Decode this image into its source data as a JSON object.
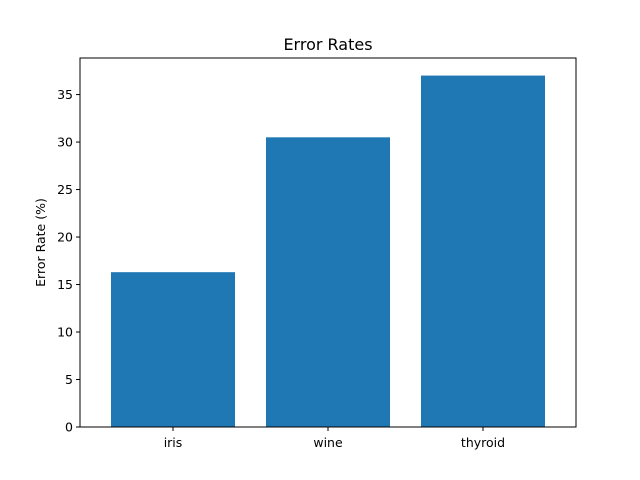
{
  "chart_data": {
    "type": "bar",
    "title": "Error Rates",
    "xlabel": "",
    "ylabel": "Error Rate (%)",
    "categories": [
      "iris",
      "wine",
      "thyroid"
    ],
    "values": [
      16.3,
      30.5,
      37.0
    ],
    "ylim": [
      0,
      38.85
    ],
    "yticks": [
      0,
      5,
      10,
      15,
      20,
      25,
      30,
      35
    ],
    "grid": false,
    "bar_color": "#1f77b4"
  }
}
